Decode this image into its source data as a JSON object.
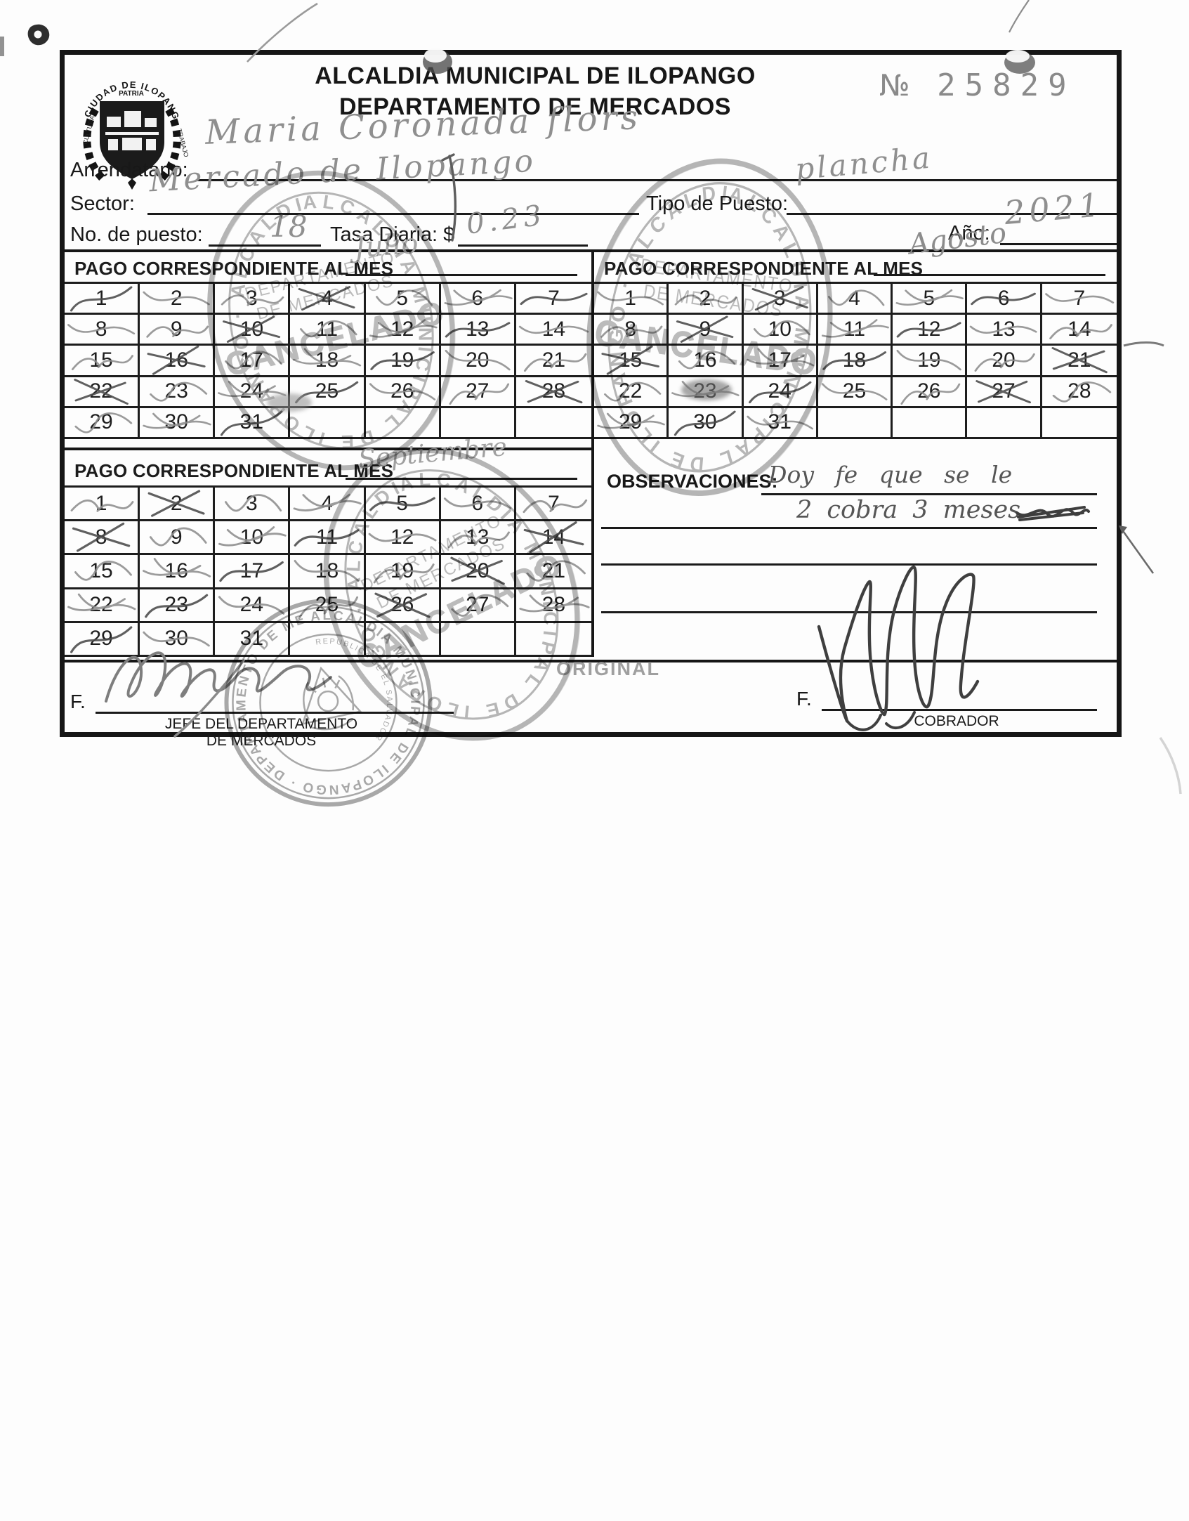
{
  "document": {
    "number_label": "№",
    "number": "25829",
    "copy_label": "ORIGINAL",
    "title_line1": "ALCALDIA MUNICIPAL DE ILOPANGO",
    "title_line2": "DEPARTAMENTO DE MERCADOS"
  },
  "emblem": {
    "arc_text": "CIUDAD DE ILOPANGO",
    "motto": "PATRIA",
    "left_text": "CULTURA",
    "right_text": "TRABAJO"
  },
  "fields": {
    "arrendatario_label": "Arrendatario:",
    "arrendatario_value": "Maria Coronada flors",
    "sector_label": "Sector:",
    "sector_value": "Mercado de Ilopango",
    "tipo_puesto_label": "Tipo de Puesto:",
    "tipo_puesto_value": "plancha",
    "no_puesto_label": "No. de puesto:",
    "no_puesto_value": "18",
    "tasa_label": "Tasa Diaria: $",
    "tasa_value": "0.23",
    "ano_label": "Año:",
    "ano_value": "2021"
  },
  "grids": [
    {
      "label": "PAGO CORRESPONDIENTE AL MES",
      "month": "Julio",
      "days": [
        1,
        2,
        3,
        4,
        5,
        6,
        7,
        8,
        9,
        10,
        11,
        12,
        13,
        14,
        15,
        16,
        17,
        18,
        19,
        20,
        21,
        22,
        23,
        24,
        25,
        26,
        27,
        28,
        29,
        30,
        31
      ],
      "struck_days": [
        1,
        2,
        3,
        4,
        5,
        6,
        7,
        8,
        9,
        10,
        11,
        12,
        13,
        14,
        15,
        16,
        17,
        18,
        19,
        20,
        21,
        22,
        23,
        24,
        25,
        26,
        27,
        28,
        29,
        30,
        31
      ]
    },
    {
      "label": "PAGO CORRESPONDIENTE AL MES",
      "month": "Agosto",
      "days": [
        1,
        2,
        3,
        4,
        5,
        6,
        7,
        8,
        9,
        10,
        11,
        12,
        13,
        14,
        15,
        16,
        17,
        18,
        19,
        20,
        21,
        22,
        23,
        24,
        25,
        26,
        27,
        28,
        29,
        30,
        31
      ],
      "struck_days": [
        1,
        2,
        3,
        4,
        5,
        6,
        7,
        8,
        9,
        10,
        11,
        12,
        13,
        14,
        15,
        16,
        17,
        18,
        19,
        20,
        21,
        22,
        23,
        24,
        25,
        26,
        27,
        28,
        29,
        30,
        31
      ]
    },
    {
      "label": "PAGO CORRESPONDIENTE AL MES",
      "month": "Septiembre",
      "days": [
        1,
        2,
        3,
        4,
        5,
        6,
        7,
        8,
        9,
        10,
        11,
        12,
        13,
        14,
        15,
        16,
        17,
        18,
        19,
        20,
        21,
        22,
        23,
        24,
        25,
        26,
        27,
        28,
        29,
        30,
        31
      ],
      "struck_days": [
        1,
        2,
        3,
        4,
        5,
        6,
        7,
        8,
        9,
        10,
        11,
        12,
        13,
        14,
        15,
        16,
        17,
        18,
        19,
        20,
        21,
        22,
        23,
        24,
        25,
        26,
        27,
        28,
        29,
        30
      ]
    }
  ],
  "observaciones": {
    "label": "OBSERVACIONES:",
    "line1": "Doy  fe  que  se  le",
    "line2": "2 cobra  3 meses"
  },
  "footer": {
    "f_label_left": "F.",
    "f_label_right": "F.",
    "left_title1": "JEFE DEL DEPARTAMENTO",
    "left_title2": "DE MERCADOS",
    "right_title": "COBRADOR"
  },
  "stamps": {
    "cancelado": {
      "ring_text": "ALCALDIA MUNICIPAL DE ILOPANGO",
      "line1": "DEPARTAMENTO",
      "line2": "DE MERCADOS",
      "word": "CANCELADO"
    },
    "seal": {
      "ring_text": "ALCALDIA MUNICIPAL DE ILOPANGO · DEPARTAMENTO DE MERCADOS · SAN SALVADOR",
      "country": "REPUBLICA DE EL SALVADOR"
    }
  }
}
